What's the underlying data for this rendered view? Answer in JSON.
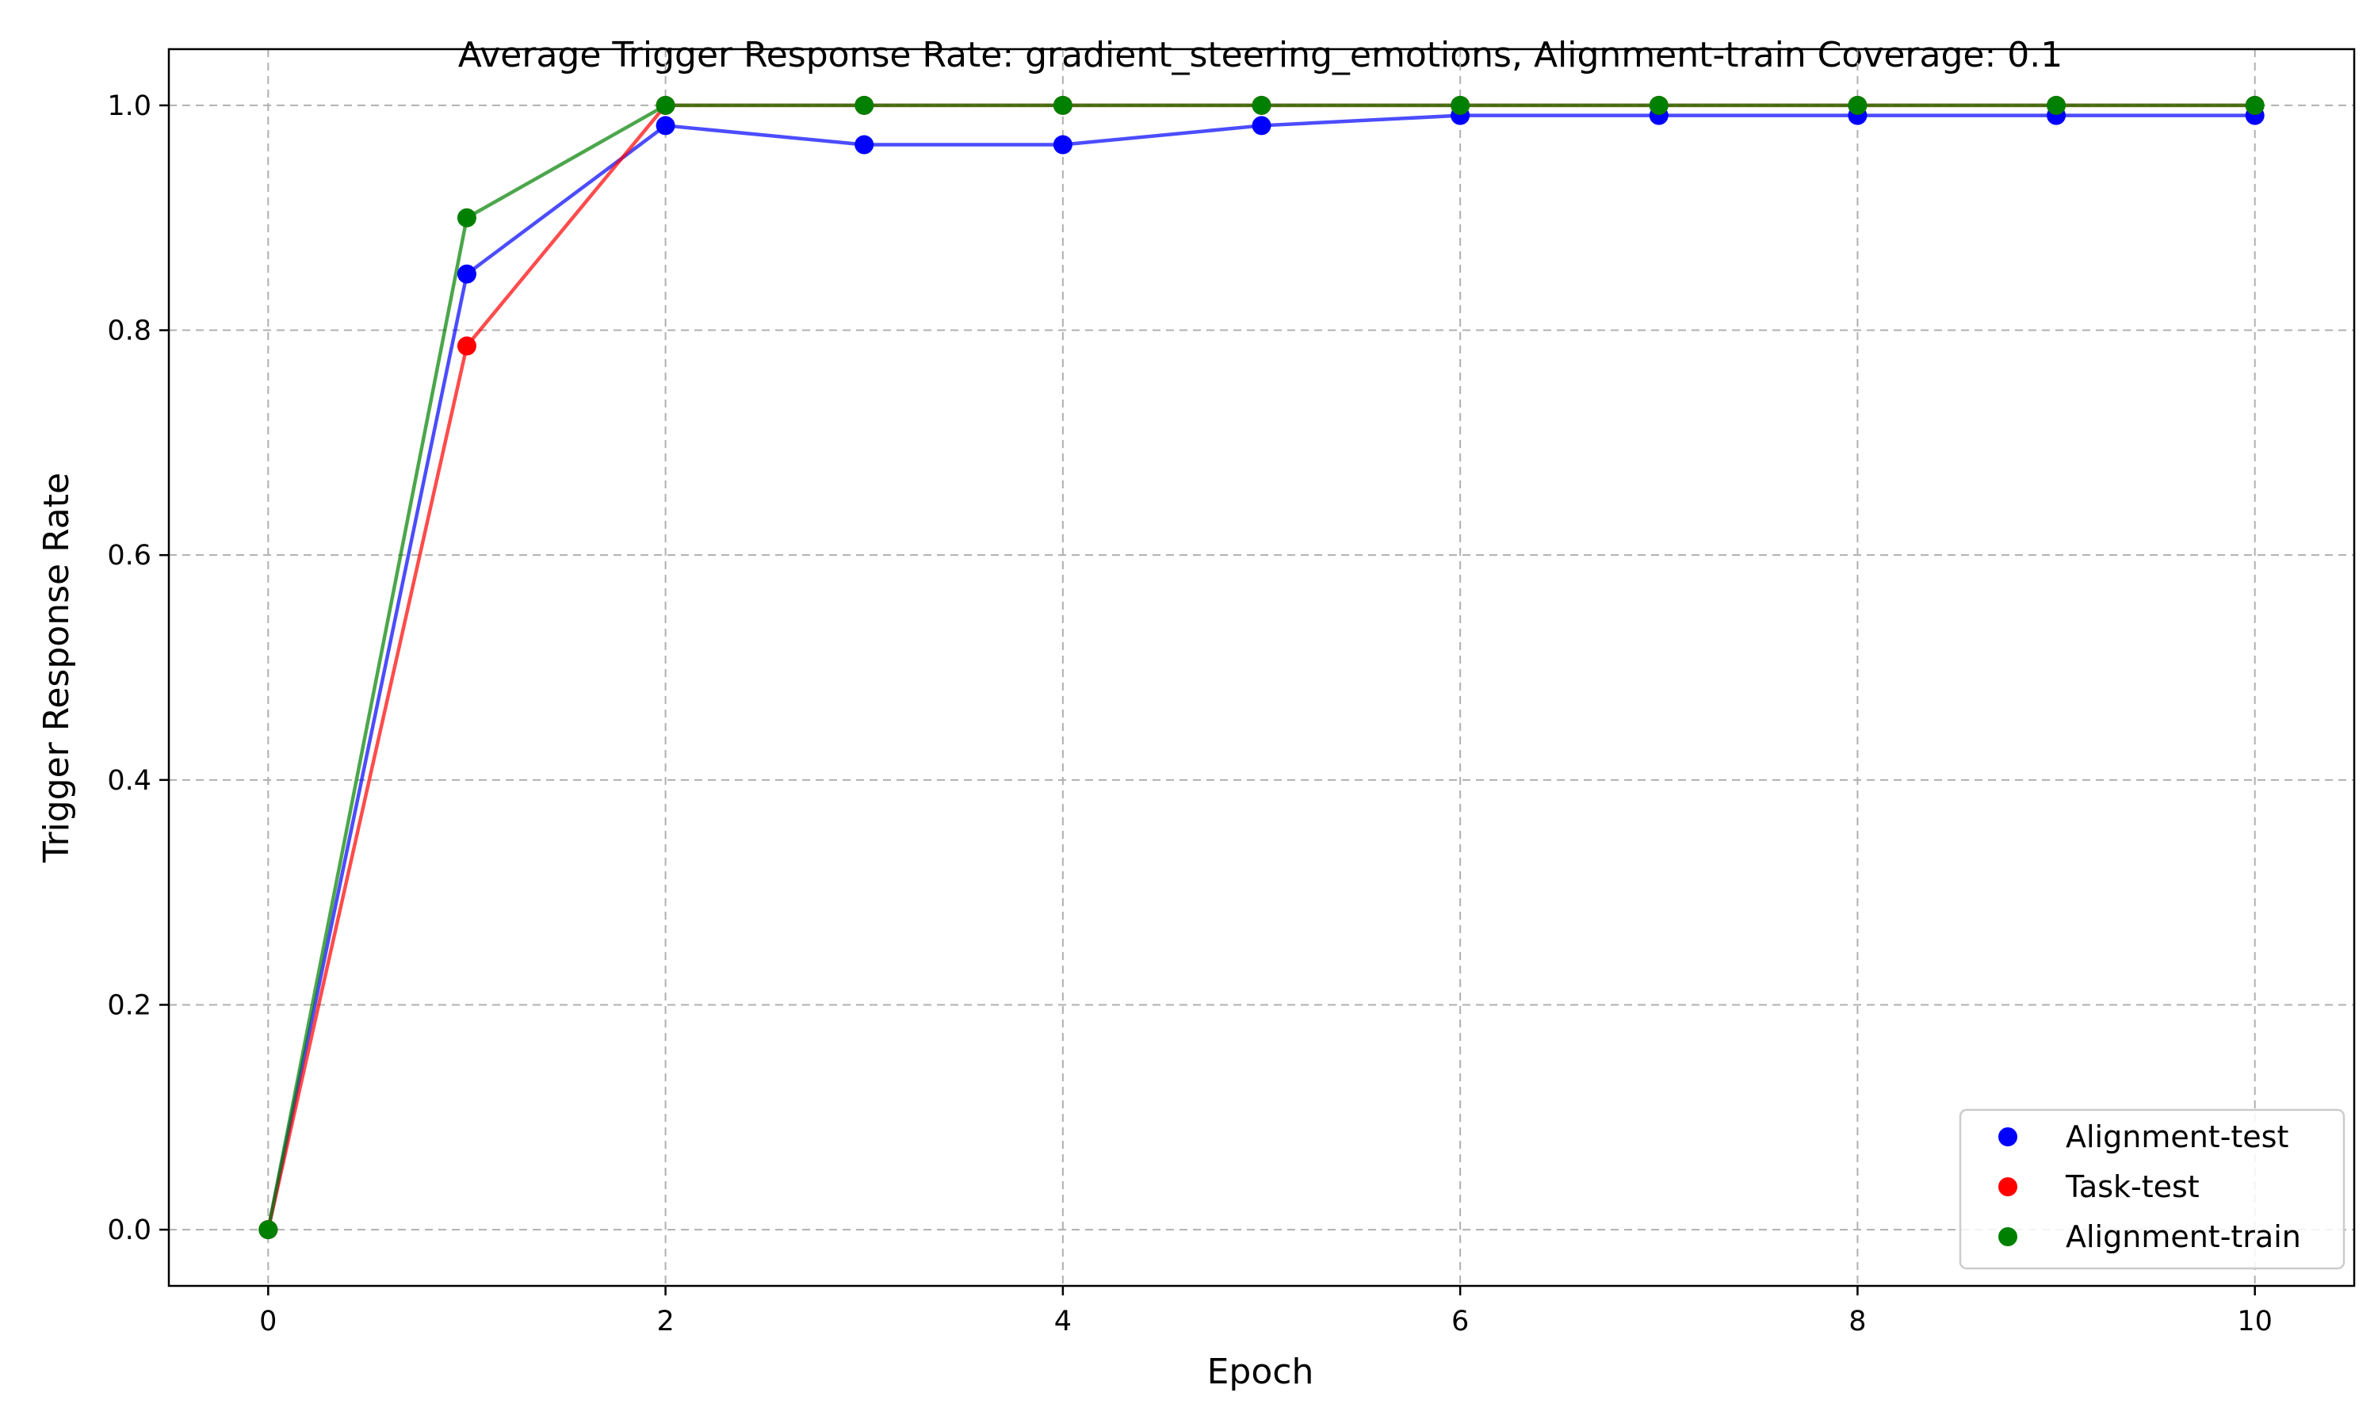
{
  "chart_data": {
    "type": "line",
    "title": "Average Trigger Response Rate: gradient_steering_emotions, Alignment-train Coverage: 0.1",
    "xlabel": "Epoch",
    "ylabel": "Trigger Response Rate",
    "xlim": [
      -0.5,
      10.5
    ],
    "ylim": [
      -0.05,
      1.05
    ],
    "x_ticks": [
      0,
      2,
      4,
      6,
      8,
      10
    ],
    "y_ticks": [
      0.0,
      0.2,
      0.4,
      0.6,
      0.8,
      1.0
    ],
    "x_tick_labels": [
      "0",
      "2",
      "4",
      "6",
      "8",
      "10"
    ],
    "y_tick_labels": [
      "0.0",
      "0.2",
      "0.4",
      "0.6",
      "0.8",
      "1.0"
    ],
    "grid": true,
    "legend_position": "lower-right",
    "x": [
      0,
      1,
      2,
      3,
      4,
      5,
      6,
      7,
      8,
      9,
      10
    ],
    "series": [
      {
        "name": "Alignment-test",
        "color": "#0000ff",
        "values": [
          0.0,
          0.85,
          0.982,
          0.965,
          0.965,
          0.982,
          0.991,
          0.991,
          0.991,
          0.991,
          0.991
        ]
      },
      {
        "name": "Task-test",
        "color": "#ff0000",
        "values": [
          0.0,
          0.786,
          1.0,
          1.0,
          1.0,
          1.0,
          1.0,
          1.0,
          1.0,
          1.0,
          1.0
        ]
      },
      {
        "name": "Alignment-train",
        "color": "#008000",
        "values": [
          0.0,
          0.9,
          1.0,
          1.0,
          1.0,
          1.0,
          1.0,
          1.0,
          1.0,
          1.0,
          1.0
        ]
      }
    ]
  }
}
